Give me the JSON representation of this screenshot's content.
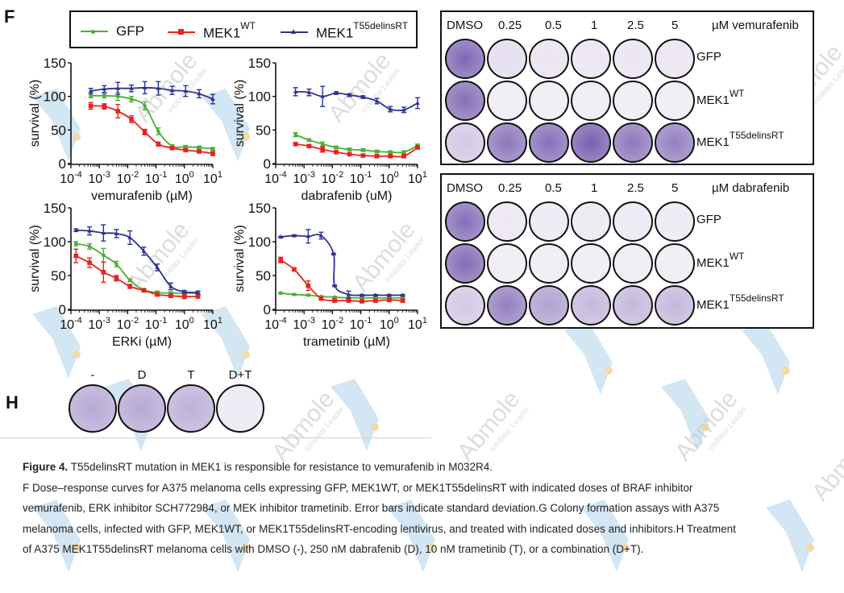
{
  "panel_labels": {
    "F": "F",
    "H": "H"
  },
  "legend": {
    "items": [
      {
        "name": "GFP",
        "base": "GFP",
        "sup": "",
        "color": "#4caf35"
      },
      {
        "name": "MEK1WT",
        "base": "MEK1",
        "sup": "WT",
        "color": "#e8231f"
      },
      {
        "name": "MEK1T55delinsRT",
        "base": "MEK1",
        "sup": "T55delinsRT",
        "color": "#2e3192"
      }
    ]
  },
  "chart_data": [
    {
      "type": "line",
      "title": "",
      "xlabel": "vemurafenib (µM)",
      "ylabel": "survival (%)",
      "xscale": "log",
      "xlim": [
        0.0001,
        10
      ],
      "ylim": [
        0,
        150
      ],
      "xticks": [
        "10-4",
        "10-3",
        "10-2",
        "10-1",
        "100",
        "101"
      ],
      "yticks": [
        0,
        50,
        100,
        150
      ],
      "grid": false,
      "series": [
        {
          "name": "GFP",
          "x": [
            0.0005,
            0.0015,
            0.0045,
            0.0135,
            0.04,
            0.12,
            0.37,
            1.1,
            3.3,
            10
          ],
          "y": [
            101,
            101,
            100,
            96,
            86,
            48,
            26,
            25,
            24,
            22
          ],
          "err": [
            3,
            3,
            6,
            4,
            6,
            5,
            2,
            2,
            2,
            2
          ]
        },
        {
          "name": "MEK1WT",
          "x": [
            0.0005,
            0.0015,
            0.0045,
            0.0135,
            0.04,
            0.12,
            0.37,
            1.1,
            3.3,
            10
          ],
          "y": [
            86,
            85,
            78,
            66,
            47,
            29,
            23,
            20,
            18,
            15
          ],
          "err": [
            5,
            4,
            10,
            5,
            4,
            3,
            2,
            2,
            2,
            3
          ]
        },
        {
          "name": "MEK1T55delinsRT",
          "x": [
            0.0005,
            0.0015,
            0.0045,
            0.0135,
            0.04,
            0.12,
            0.37,
            1.1,
            3.3,
            10
          ],
          "y": [
            108,
            111,
            112,
            112,
            113,
            112,
            109,
            108,
            104,
            96
          ],
          "err": [
            4,
            5,
            9,
            5,
            9,
            10,
            6,
            8,
            6,
            7
          ]
        }
      ]
    },
    {
      "type": "line",
      "title": "",
      "xlabel": "dabrafenib (uM)",
      "ylabel": "survival (%)",
      "xscale": "log",
      "xlim": [
        0.0001,
        10
      ],
      "ylim": [
        0,
        150
      ],
      "xticks": [
        "10-4",
        "10-3",
        "10-2",
        "10-1",
        "100",
        "101"
      ],
      "yticks": [
        0,
        50,
        100,
        150
      ],
      "grid": false,
      "series": [
        {
          "name": "GFP",
          "x": [
            0.0005,
            0.0015,
            0.0045,
            0.0135,
            0.04,
            0.12,
            0.37,
            1.1,
            3.3,
            10
          ],
          "y": [
            43,
            35,
            29,
            24,
            21,
            20,
            18,
            17,
            17,
            27
          ],
          "err": [
            3,
            2,
            3,
            2,
            2,
            2,
            2,
            2,
            2,
            2
          ]
        },
        {
          "name": "MEK1WT",
          "x": [
            0.0005,
            0.0015,
            0.0045,
            0.0135,
            0.04,
            0.12,
            0.37,
            1.1,
            3.3,
            10
          ],
          "y": [
            29,
            26,
            21,
            17,
            14,
            12,
            11,
            11,
            11,
            24
          ],
          "err": [
            2,
            2,
            4,
            2,
            2,
            2,
            2,
            2,
            2,
            2
          ]
        },
        {
          "name": "MEK1T55delinsRT",
          "x": [
            0.0005,
            0.0015,
            0.0045,
            0.0135,
            0.04,
            0.12,
            0.37,
            1.1,
            3.3,
            10
          ],
          "y": [
            107,
            106,
            100,
            105,
            102,
            99,
            93,
            81,
            80,
            90
          ],
          "err": [
            6,
            5,
            15,
            2,
            2,
            2,
            4,
            4,
            4,
            8
          ]
        }
      ]
    },
    {
      "type": "line",
      "title": "",
      "xlabel": "ERKi (µM)",
      "ylabel": "survival (%)",
      "xscale": "log",
      "xlim": [
        0.0001,
        10
      ],
      "ylim": [
        0,
        150
      ],
      "xticks": [
        "10-4",
        "10-3",
        "10-2",
        "10-1",
        "100",
        "101"
      ],
      "yticks": [
        0,
        50,
        100,
        150
      ],
      "grid": false,
      "series": [
        {
          "name": "GFP",
          "x": [
            0.00015,
            0.00045,
            0.0014,
            0.004,
            0.012,
            0.037,
            0.11,
            0.33,
            1.0,
            3.0
          ],
          "y": [
            97,
            93,
            80,
            67,
            43,
            29,
            25,
            24,
            24,
            24
          ],
          "err": [
            3,
            4,
            10,
            4,
            2,
            2,
            2,
            2,
            2,
            2
          ]
        },
        {
          "name": "MEK1WT",
          "x": [
            0.00015,
            0.00045,
            0.0014,
            0.004,
            0.012,
            0.037,
            0.11,
            0.33,
            1.0,
            3.0
          ],
          "y": [
            79,
            69,
            55,
            46,
            34,
            28,
            22,
            20,
            19,
            19
          ],
          "err": [
            10,
            7,
            15,
            4,
            3,
            2,
            2,
            2,
            3,
            2
          ]
        },
        {
          "name": "MEK1T55delinsRT",
          "x": [
            0.00015,
            0.00045,
            0.0014,
            0.004,
            0.012,
            0.037,
            0.11,
            0.33,
            1.0,
            3.0
          ],
          "y": [
            117,
            116,
            113,
            112,
            106,
            86,
            62,
            34,
            26,
            25
          ],
          "err": [
            2,
            6,
            12,
            6,
            10,
            6,
            5,
            5,
            2,
            2
          ]
        }
      ]
    },
    {
      "type": "line",
      "title": "",
      "xlabel": "trametinib (µM)",
      "ylabel": "survival (%)",
      "xscale": "log",
      "xlim": [
        0.0001,
        10
      ],
      "ylim": [
        0,
        150
      ],
      "xticks": [
        "10-4",
        "10-3",
        "10-2",
        "10-1",
        "100",
        "101"
      ],
      "yticks": [
        0,
        50,
        100,
        150
      ],
      "grid": false,
      "series": [
        {
          "name": "GFP",
          "x": [
            0.00015,
            0.00045,
            0.0014,
            0.004,
            0.012,
            0.037,
            0.11,
            0.33,
            1.0,
            3.0
          ],
          "y": [
            24,
            22,
            21,
            19,
            18,
            17,
            17,
            17,
            17,
            17
          ],
          "err": [
            1,
            1,
            1,
            1,
            1,
            1,
            1,
            1,
            1,
            1
          ]
        },
        {
          "name": "MEK1WT",
          "x": [
            0.00015,
            0.00045,
            0.0014,
            0.004,
            0.012,
            0.037,
            0.11,
            0.33,
            1.0,
            3.0
          ],
          "y": [
            73,
            59,
            35,
            16,
            13,
            13,
            12,
            13,
            14,
            13
          ],
          "err": [
            4,
            2,
            7,
            2,
            2,
            2,
            2,
            2,
            2,
            2
          ]
        },
        {
          "name": "MEK1T55delinsRT",
          "x": [
            0.00015,
            0.00045,
            0.0014,
            0.004,
            0.011,
            0.012,
            0.037,
            0.11,
            0.33,
            1.0,
            3.0
          ],
          "y": [
            107,
            109,
            108,
            109,
            82,
            35,
            22,
            21,
            21,
            21,
            21
          ],
          "err": [
            1,
            1,
            10,
            5,
            1,
            1,
            5,
            1,
            1,
            1,
            1
          ]
        }
      ]
    }
  ],
  "colony_plates": [
    {
      "header_doses": [
        "DMSO",
        "0.25",
        "0.5",
        "1",
        "2.5",
        "5"
      ],
      "unit_label": "µM vemurafenib",
      "rows": [
        {
          "base": "GFP",
          "sup": "",
          "stain": [
            0.85,
            0.12,
            0.08,
            0.07,
            0.08,
            0.07
          ]
        },
        {
          "base": "MEK1",
          "sup": "WT",
          "stain": [
            0.8,
            0.03,
            0.03,
            0.03,
            0.03,
            0.03
          ]
        },
        {
          "base": "MEK1",
          "sup": "T55delinsRT",
          "stain": [
            0.25,
            0.75,
            0.8,
            0.9,
            0.75,
            0.7
          ]
        }
      ]
    },
    {
      "header_doses": [
        "DMSO",
        "0.25",
        "0.5",
        "1",
        "2.5",
        "5"
      ],
      "unit_label": "µM dabrafenib",
      "rows": [
        {
          "base": "GFP",
          "sup": "",
          "stain": [
            0.8,
            0.06,
            0.05,
            0.05,
            0.05,
            0.05
          ]
        },
        {
          "base": "MEK1",
          "sup": "WT",
          "stain": [
            0.82,
            0.03,
            0.03,
            0.03,
            0.03,
            0.03
          ]
        },
        {
          "base": "MEK1",
          "sup": "T55delinsRT",
          "stain": [
            0.25,
            0.7,
            0.5,
            0.35,
            0.35,
            0.35
          ]
        }
      ]
    }
  ],
  "panel_h": {
    "labels": [
      "-",
      "D",
      "T",
      "D+T"
    ],
    "stain": [
      0.45,
      0.45,
      0.4,
      0.05
    ]
  },
  "caption": {
    "title_bold": "Figure 4.",
    "title_rest": " T55delinsRT mutation in MEK1 is responsible for resistance to vemurafenib in M032R4.",
    "lines": [
      "F Dose–response curves for A375 melanoma cells expressing GFP, MEK1WT, or MEK1T55delinsRT with indicated doses of BRAF inhibitor",
      "vemurafenib, ERK inhibitor SCH772984, or MEK inhibitor trametinib. Error bars indicate standard deviation.G Colony formation assays with A375",
      "melanoma cells, infected with GFP, MEK1WT, or MEK1T55delinsRT-encoding lentivirus, and treated with indicated doses and inhibitors.H Treatment",
      "of A375 MEK1T55delinsRT melanoma cells with DMSO (-), 250 nM dabrafenib (D), 10 nM trametinib (T), or a combination (D+T)."
    ]
  },
  "watermark": {
    "brand": "Abmole",
    "tagline": "Inhibitor Leader"
  },
  "colors": {
    "stain": "#6a4fa8",
    "wm_blue": "#bfdcf0",
    "wm_text": "#c8c8c8",
    "wm_dot": "#f6d9a8"
  }
}
